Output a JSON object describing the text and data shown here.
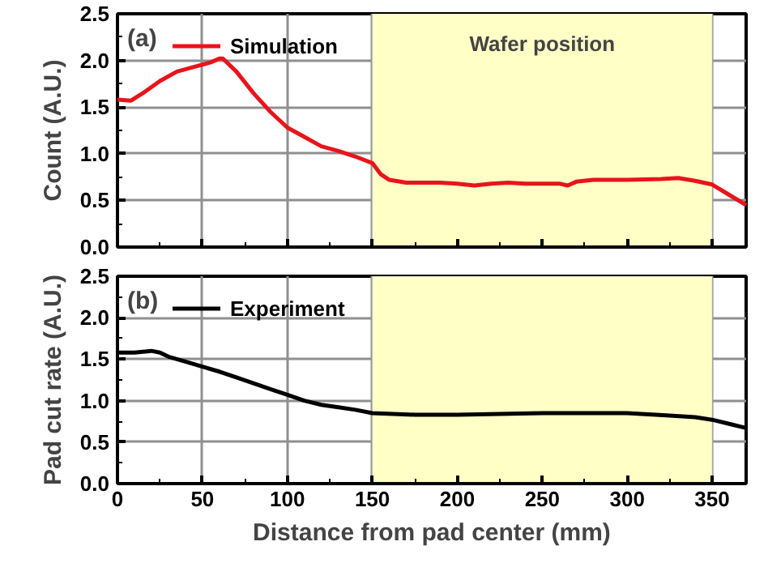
{
  "chart_data": [
    {
      "type": "line",
      "ylabel": "Count (A.U.)",
      "xlim": [
        0,
        370
      ],
      "xticks": [
        0,
        50,
        100,
        150,
        200,
        250,
        300,
        350
      ],
      "ylim": [
        0,
        2.5
      ],
      "yticks": [
        {
          "value": 0,
          "label": "0.0"
        },
        {
          "value": 0.5,
          "label": "0.5"
        },
        {
          "value": 1,
          "label": "1.0"
        },
        {
          "value": 1.5,
          "label": "1.5"
        },
        {
          "value": 2,
          "label": "2.0"
        },
        {
          "value": 2.5,
          "label": "2.5"
        }
      ],
      "tick_labels": "y",
      "grid": true,
      "legend": "top left",
      "annotations": [
        "(a)"
      ],
      "bands": [
        {
          "axis": "x",
          "from": 150,
          "to": 350,
          "label": "Wafer position",
          "color": "#ffffc6"
        }
      ],
      "x": [
        0,
        8,
        15,
        25,
        35,
        45,
        55,
        60,
        62,
        70,
        80,
        90,
        100,
        110,
        120,
        130,
        140,
        150,
        155,
        160,
        170,
        180,
        190,
        200,
        210,
        220,
        230,
        240,
        250,
        260,
        265,
        270,
        280,
        300,
        320,
        330,
        340,
        350,
        360,
        370
      ],
      "series": [
        {
          "name": "Simulation",
          "color": "#e8141c",
          "values": [
            1.58,
            1.57,
            1.65,
            1.78,
            1.88,
            1.93,
            1.98,
            2.02,
            2.02,
            1.88,
            1.65,
            1.45,
            1.28,
            1.18,
            1.08,
            1.03,
            0.97,
            0.9,
            0.78,
            0.72,
            0.69,
            0.69,
            0.69,
            0.68,
            0.66,
            0.68,
            0.69,
            0.68,
            0.68,
            0.68,
            0.66,
            0.7,
            0.72,
            0.72,
            0.73,
            0.74,
            0.71,
            0.67,
            0.56,
            0.45
          ]
        }
      ]
    },
    {
      "type": "line",
      "ylabel": "Pad cut rate (A.U.)",
      "xlabel": "Distance from pad center (mm)",
      "xlim": [
        0,
        370
      ],
      "xticks": [
        0,
        50,
        100,
        150,
        200,
        250,
        300,
        350
      ],
      "ylim": [
        0,
        2.5
      ],
      "yticks": [
        {
          "value": 0,
          "label": "0.0"
        },
        {
          "value": 0.5,
          "label": "0.5"
        },
        {
          "value": 1,
          "label": "1.0"
        },
        {
          "value": 1.5,
          "label": "1.5"
        },
        {
          "value": 2,
          "label": "2.0"
        },
        {
          "value": 2.5,
          "label": "2.5"
        }
      ],
      "grid": true,
      "legend": "top left",
      "annotations": [
        "(b)"
      ],
      "bands": [
        {
          "axis": "x",
          "from": 150,
          "to": 350,
          "label": null,
          "color": "#ffffc6"
        }
      ],
      "x": [
        0,
        10,
        20,
        25,
        30,
        40,
        50,
        60,
        70,
        80,
        90,
        100,
        110,
        120,
        130,
        140,
        150,
        175,
        200,
        225,
        250,
        275,
        300,
        325,
        340,
        350,
        360,
        370
      ],
      "series": [
        {
          "name": "Experiment",
          "color": "#000000",
          "values": [
            1.58,
            1.58,
            1.6,
            1.58,
            1.53,
            1.47,
            1.41,
            1.35,
            1.28,
            1.21,
            1.14,
            1.07,
            1.0,
            0.95,
            0.92,
            0.89,
            0.85,
            0.83,
            0.83,
            0.84,
            0.85,
            0.85,
            0.85,
            0.82,
            0.8,
            0.77,
            0.72,
            0.67
          ]
        }
      ]
    }
  ]
}
